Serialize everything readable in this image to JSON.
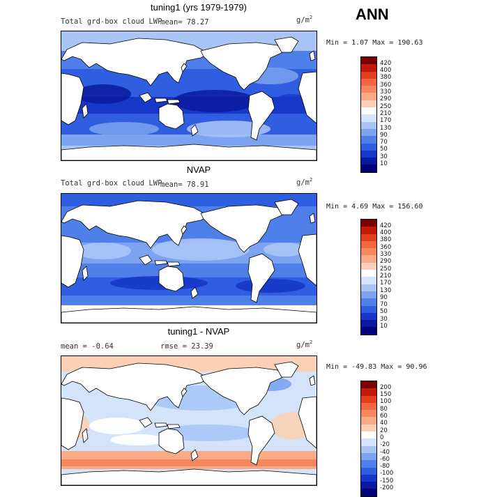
{
  "season": "ANN",
  "panels": [
    {
      "title": "tuning1 (yrs 1979-1979)",
      "subtitle": "Total grd-box cloud LWP",
      "stat1": "mean=  78.27",
      "stat2": "",
      "unit_base": "g/m",
      "unit_exp": "2",
      "minmax": "Min =   1.07 Max = 190.63",
      "map_type": "model",
      "colorbar": {
        "levels": [
          "420",
          "400",
          "380",
          "360",
          "330",
          "290",
          "250",
          "210",
          "170",
          "130",
          "90",
          "70",
          "50",
          "30",
          "10"
        ],
        "colors": [
          "#7a0000",
          "#c21a0a",
          "#e0401c",
          "#f26640",
          "#f68860",
          "#f9ab88",
          "#fcd0b4",
          "#ffffff",
          "#d3e3fa",
          "#a9c5f6",
          "#7ba3ef",
          "#4f7fe8",
          "#2f5fe0",
          "#1737c8",
          "#0a1aa0",
          "#000078"
        ]
      }
    },
    {
      "title": "NVAP",
      "subtitle": "Total grd-box cloud LWP",
      "stat1": "mean=  78.91",
      "stat2": "",
      "unit_base": "g/m",
      "unit_exp": "2",
      "minmax": "Min =   4.69 Max = 156.60",
      "map_type": "obs",
      "colorbar": {
        "levels": [
          "420",
          "400",
          "380",
          "360",
          "330",
          "290",
          "250",
          "210",
          "170",
          "130",
          "90",
          "70",
          "50",
          "30",
          "10"
        ],
        "colors": [
          "#7a0000",
          "#c21a0a",
          "#e0401c",
          "#f26640",
          "#f68860",
          "#f9ab88",
          "#fcd0b4",
          "#ffffff",
          "#d3e3fa",
          "#a9c5f6",
          "#7ba3ef",
          "#4f7fe8",
          "#2f5fe0",
          "#1737c8",
          "#0a1aa0",
          "#000078"
        ]
      }
    },
    {
      "title": "tuning1 - NVAP",
      "subtitle": "mean =   -0.64",
      "stat1": "rmse =  23.39",
      "stat2": "",
      "unit_base": "g/m",
      "unit_exp": "2",
      "minmax": "Min = -49.83 Max =  90.96",
      "map_type": "diff",
      "colorbar": {
        "levels": [
          "200",
          "150",
          "100",
          "80",
          "60",
          "40",
          "20",
          "0",
          "-20",
          "-40",
          "-60",
          "-80",
          "-100",
          "-150",
          "-200"
        ],
        "colors": [
          "#7a0000",
          "#c21a0a",
          "#e0401c",
          "#f26640",
          "#f68860",
          "#f9ab88",
          "#fcd0b4",
          "#ffffff",
          "#d3e3fa",
          "#a9c5f6",
          "#7ba3ef",
          "#4f7fe8",
          "#2f5fe0",
          "#1737c8",
          "#0a1aa0",
          "#000078"
        ]
      }
    }
  ]
}
